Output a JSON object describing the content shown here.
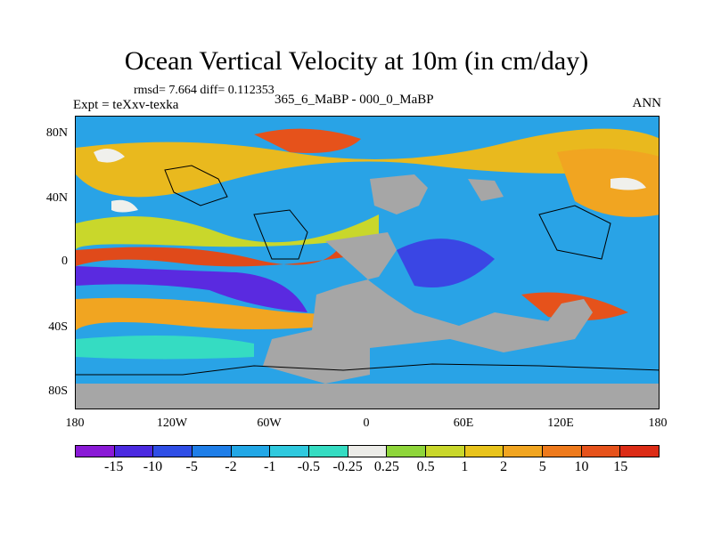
{
  "title": "Ocean Vertical Velocity at 10m (in cm/day)",
  "stats": "rmsd= 7.664 diff= 0.112353",
  "expt": "Expt = teXxv-texka",
  "case": "365_6_MaBP - 000_0_MaBP",
  "season": "ANN",
  "lat_labels": [
    "80N",
    "40N",
    "0",
    "40S",
    "80S"
  ],
  "lon_labels": [
    "180",
    "120W",
    "60W",
    "0",
    "60E",
    "120E",
    "180"
  ],
  "colorbar": {
    "labels": [
      "-15",
      "-10",
      "-5",
      "-2",
      "-1",
      "-0.5",
      "-0.25",
      "0.25",
      "0.5",
      "1",
      "2",
      "5",
      "10",
      "15"
    ],
    "colors": [
      "#8a1ad6",
      "#4b2ae0",
      "#2f4ee6",
      "#1f7ee8",
      "#22a7e6",
      "#2fc9de",
      "#35dcc2",
      "#ecece8",
      "#8ed53a",
      "#c9d72b",
      "#e8c31c",
      "#f1a521",
      "#ee7a1c",
      "#e6521b",
      "#dc2c16"
    ]
  },
  "map_colors": {
    "land": "#a6a6a6",
    "ocean_bg": "#2a9ce6"
  }
}
